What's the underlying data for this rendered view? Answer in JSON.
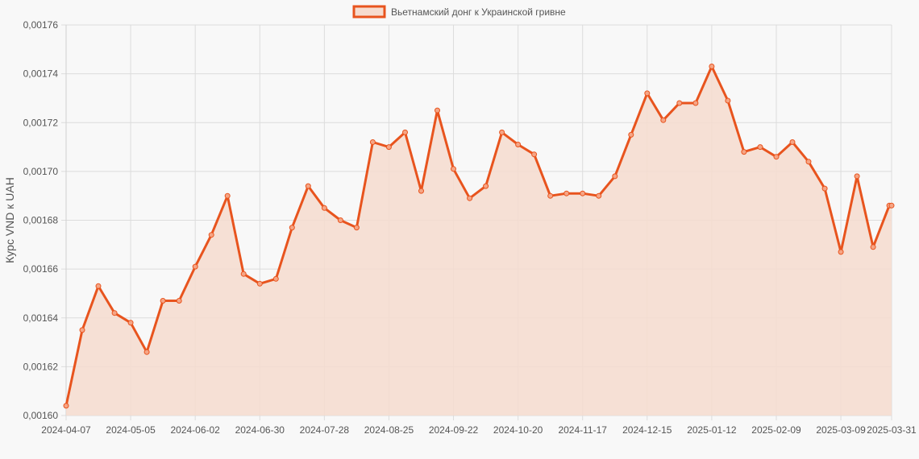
{
  "chart_data": {
    "type": "line",
    "legend": "Вьетнамский донг к Украинской гривне",
    "ylabel": "Курс VND к UAH",
    "xlabel": "",
    "ylim": [
      0.0016,
      0.00176
    ],
    "y_ticks": [
      "0,00160",
      "0,00162",
      "0,00164",
      "0,00166",
      "0,00168",
      "0,00170",
      "0,00172",
      "0,00174",
      "0,00176"
    ],
    "x_tick_labels": [
      "2024-04-07",
      "2024-05-05",
      "2024-06-02",
      "2024-06-30",
      "2024-07-28",
      "2024-08-25",
      "2024-09-22",
      "2024-10-20",
      "2024-11-17",
      "2024-12-15",
      "2025-01-12",
      "2025-02-09",
      "2025-03-09",
      "2025-03-31"
    ],
    "x": [
      "2024-04-07",
      "2024-04-14",
      "2024-04-21",
      "2024-04-28",
      "2024-05-05",
      "2024-05-12",
      "2024-05-19",
      "2024-05-26",
      "2024-06-02",
      "2024-06-09",
      "2024-06-16",
      "2024-06-23",
      "2024-06-30",
      "2024-07-07",
      "2024-07-14",
      "2024-07-21",
      "2024-07-28",
      "2024-08-04",
      "2024-08-11",
      "2024-08-18",
      "2024-08-25",
      "2024-09-01",
      "2024-09-08",
      "2024-09-15",
      "2024-09-22",
      "2024-09-29",
      "2024-10-06",
      "2024-10-13",
      "2024-10-20",
      "2024-10-27",
      "2024-11-03",
      "2024-11-10",
      "2024-11-17",
      "2024-11-24",
      "2024-12-01",
      "2024-12-08",
      "2024-12-15",
      "2024-12-22",
      "2024-12-29",
      "2025-01-05",
      "2025-01-12",
      "2025-01-19",
      "2025-01-26",
      "2025-02-02",
      "2025-02-09",
      "2025-02-16",
      "2025-02-23",
      "2025-03-02",
      "2025-03-09",
      "2025-03-16",
      "2025-03-23",
      "2025-03-30",
      "2025-03-31"
    ],
    "series": [
      {
        "name": "Вьетнамский донг к Украинской гривне",
        "values": [
          0.001604,
          0.001635,
          0.001653,
          0.001642,
          0.001638,
          0.001626,
          0.001647,
          0.001647,
          0.001661,
          0.001674,
          0.00169,
          0.001658,
          0.001654,
          0.001656,
          0.001677,
          0.001694,
          0.001685,
          0.00168,
          0.001677,
          0.001712,
          0.00171,
          0.001716,
          0.001692,
          0.001725,
          0.001701,
          0.001689,
          0.001694,
          0.001716,
          0.001711,
          0.001707,
          0.00169,
          0.001691,
          0.001691,
          0.00169,
          0.001698,
          0.001715,
          0.001732,
          0.001721,
          0.001728,
          0.001728,
          0.001743,
          0.001729,
          0.001708,
          0.00171,
          0.001706,
          0.001712,
          0.001704,
          0.001693,
          0.001667,
          0.001698,
          0.001669,
          0.001686,
          0.001686
        ]
      }
    ],
    "colors": {
      "line": "#e8541e",
      "fill": "#f6dccf",
      "grid": "#dcdcdc",
      "background": "#f8f8f8"
    },
    "grid": true,
    "legend_position": "top-center"
  }
}
